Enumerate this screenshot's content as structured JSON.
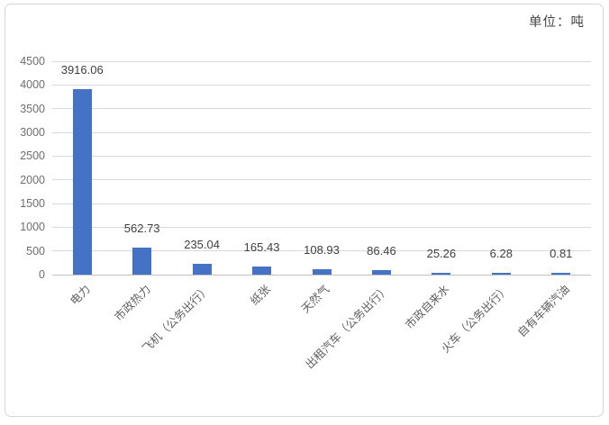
{
  "unit_label": "单位：吨",
  "chart_data": {
    "type": "bar",
    "title": "",
    "xlabel": "",
    "ylabel": "",
    "categories": [
      "电力",
      "市政热力",
      "飞机（公务出行）",
      "纸张",
      "天然气",
      "出租汽车（公务出行）",
      "市政自来水",
      "火车（公务出行）",
      "自有车辆汽油"
    ],
    "values": [
      3916.06,
      562.73,
      235.04,
      165.43,
      108.93,
      86.46,
      25.26,
      6.28,
      0.81
    ],
    "value_labels": [
      "3916.06",
      "562.73",
      "235.04",
      "165.43",
      "108.93",
      "86.46",
      "25.26",
      "6.28",
      "0.81"
    ],
    "ylim": [
      0,
      4500
    ],
    "ytick_interval": 500,
    "yticks": [
      0,
      500,
      1000,
      1500,
      2000,
      2500,
      3000,
      3500,
      4000,
      4500
    ],
    "grid": true,
    "legend": "none",
    "unit_annotation": "单位：吨",
    "bar_color": "#4472c4",
    "grid_color": "#d9d9d9",
    "axis_label_color": "#6e6e6e",
    "data_label_color": "#3f3f3f"
  }
}
